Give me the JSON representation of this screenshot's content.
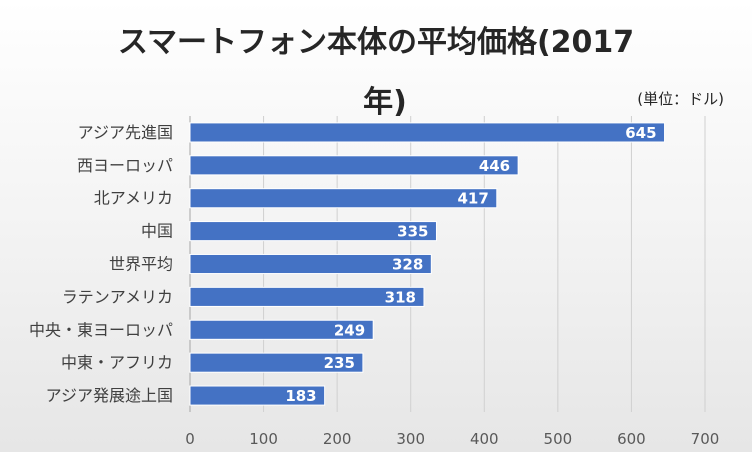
{
  "chart_data": {
    "type": "bar",
    "orientation": "horizontal",
    "title_line1": "スマートフォン本体の平均価格(2017",
    "title_line2": "年)",
    "unit_label": "(単位：ドル)",
    "categories": [
      "アジア先進国",
      "西ヨーロッパ",
      "北アメリカ",
      "中国",
      "世界平均",
      "ラテンアメリカ",
      "中央・東ヨーロッパ",
      "中東・アフリカ",
      "アジア発展途上国"
    ],
    "values": [
      645,
      446,
      417,
      335,
      328,
      318,
      249,
      235,
      183
    ],
    "xlim": [
      0,
      700
    ],
    "xticks": [
      0,
      100,
      200,
      300,
      400,
      500,
      600,
      700
    ],
    "grid": true,
    "bar_color": "#4472c4",
    "label_color": "#ffffff"
  }
}
